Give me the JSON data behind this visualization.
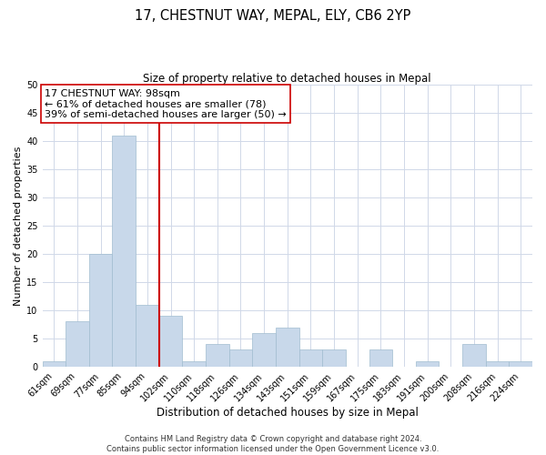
{
  "title": "17, CHESTNUT WAY, MEPAL, ELY, CB6 2YP",
  "subtitle": "Size of property relative to detached houses in Mepal",
  "xlabel": "Distribution of detached houses by size in Mepal",
  "ylabel": "Number of detached properties",
  "bar_color": "#c8d8ea",
  "bar_edge_color": "#a0bcd0",
  "bin_labels": [
    "61sqm",
    "69sqm",
    "77sqm",
    "85sqm",
    "94sqm",
    "102sqm",
    "110sqm",
    "118sqm",
    "126sqm",
    "134sqm",
    "143sqm",
    "151sqm",
    "159sqm",
    "167sqm",
    "175sqm",
    "183sqm",
    "191sqm",
    "200sqm",
    "208sqm",
    "216sqm",
    "224sqm"
  ],
  "counts": [
    1,
    8,
    20,
    41,
    11,
    9,
    1,
    4,
    3,
    6,
    7,
    3,
    3,
    0,
    3,
    0,
    1,
    0,
    4,
    1,
    1
  ],
  "vline_x_index": 4.5,
  "vline_color": "#cc0000",
  "annotation_line1": "17 CHESTNUT WAY: 98sqm",
  "annotation_line2": "← 61% of detached houses are smaller (78)",
  "annotation_line3": "39% of semi-detached houses are larger (50) →",
  "annotation_box_color": "#ffffff",
  "annotation_box_edge_color": "#cc0000",
  "ylim": [
    0,
    50
  ],
  "yticks": [
    0,
    5,
    10,
    15,
    20,
    25,
    30,
    35,
    40,
    45,
    50
  ],
  "footer_line1": "Contains HM Land Registry data © Crown copyright and database right 2024.",
  "footer_line2": "Contains public sector information licensed under the Open Government Licence v3.0.",
  "background_color": "#ffffff",
  "grid_color": "#d0d8e8",
  "title_fontsize": 10.5,
  "subtitle_fontsize": 8.5,
  "xlabel_fontsize": 8.5,
  "ylabel_fontsize": 8,
  "tick_fontsize": 7,
  "annotation_fontsize": 8,
  "footer_fontsize": 6
}
